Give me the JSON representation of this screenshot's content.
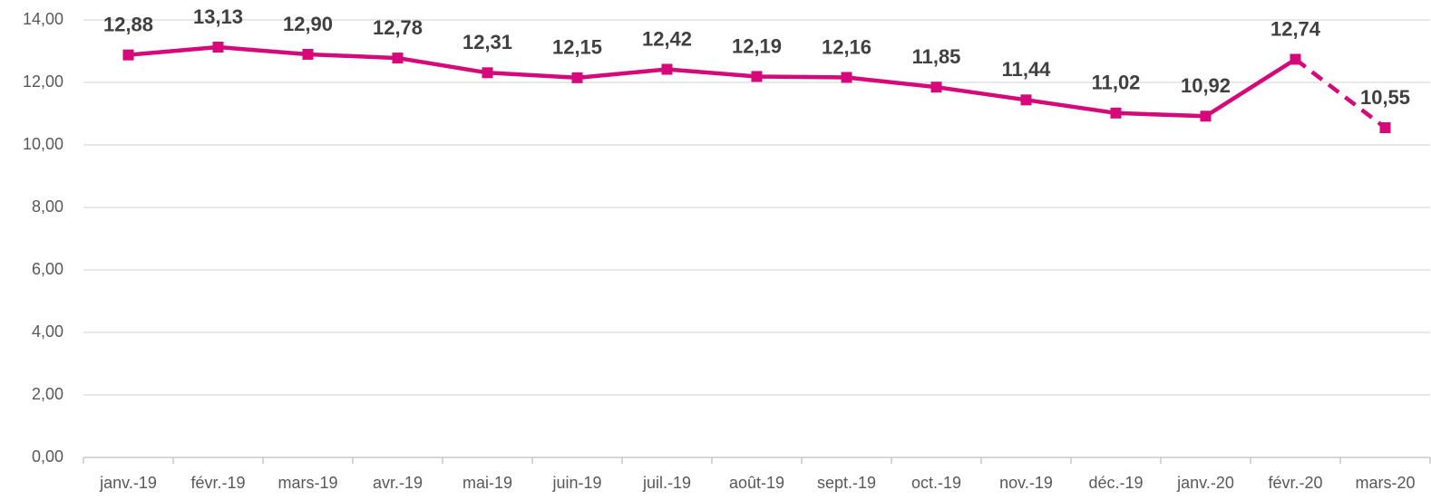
{
  "chart_data": {
    "type": "line",
    "categories": [
      "janv.-19",
      "févr.-19",
      "mars-19",
      "avr.-19",
      "mai-19",
      "juin-19",
      "juil.-19",
      "août-19",
      "sept.-19",
      "oct.-19",
      "nov.-19",
      "déc.-19",
      "janv.-20",
      "févr.-20",
      "mars-20"
    ],
    "series": [
      {
        "color": "#d6087a",
        "values": [
          12.88,
          13.13,
          12.9,
          12.78,
          12.31,
          12.15,
          12.42,
          12.19,
          12.16,
          11.85,
          11.44,
          11.02,
          10.92,
          12.74,
          10.55
        ],
        "value_labels": [
          "12,88",
          "13,13",
          "12,90",
          "12,78",
          "12,31",
          "12,15",
          "12,42",
          "12,19",
          "12,16",
          "11,85",
          "11,44",
          "11,02",
          "10,92",
          "12,74",
          "10,55"
        ]
      }
    ],
    "last_segment_dashed": true,
    "ylim": [
      0,
      14
    ],
    "yticks": [
      {
        "value": 0,
        "label": "0,00"
      },
      {
        "value": 2,
        "label": "2,00"
      },
      {
        "value": 4,
        "label": "4,00"
      },
      {
        "value": 6,
        "label": "6,00"
      },
      {
        "value": 8,
        "label": "8,00"
      },
      {
        "value": 10,
        "label": "10,00"
      },
      {
        "value": 12,
        "label": "12,00"
      },
      {
        "value": 14,
        "label": "14,00"
      }
    ],
    "grid": true
  }
}
